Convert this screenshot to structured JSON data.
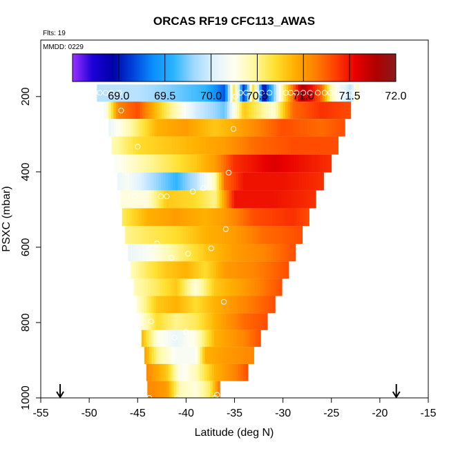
{
  "chart_data": {
    "type": "heatmap",
    "title": "ORCAS RF19 CFC113_AWAS",
    "annotations": {
      "flights": "Flts: 19",
      "date": "MMDD: 0229"
    },
    "xlabel": "Latitude (deg N)",
    "ylabel": "PSXC (mbar)",
    "xlim": [
      -55,
      -15
    ],
    "ylim": [
      1000,
      50
    ],
    "x_ticks": [
      -55,
      -50,
      -45,
      -40,
      -35,
      -30,
      -25,
      -20,
      -15
    ],
    "x_tick_labels": [
      "-55",
      "-50",
      "-45",
      "-40",
      "-35",
      "-30",
      "-25",
      "-20",
      "-15"
    ],
    "y_ticks": [
      200,
      400,
      600,
      800,
      1000
    ],
    "y_tick_labels": [
      "200",
      "400",
      "600",
      "800",
      "1000"
    ],
    "colorbar": {
      "range": [
        68.5,
        72.0
      ],
      "ticks": [
        69.0,
        69.5,
        70.0,
        70.5,
        71.0,
        71.5,
        72.0
      ],
      "tick_labels": [
        "69.0",
        "69.5",
        "70.0",
        "70.5",
        "71.0",
        "71.5",
        "72.0"
      ],
      "colors": [
        "#9b30ff",
        "#1c00d8",
        "#0000a8",
        "#0044dd",
        "#0a8fff",
        "#2ab4ff",
        "#9fd8ff",
        "#e0f2ff",
        "#fffff0",
        "#fff8a0",
        "#ffe030",
        "#ffb000",
        "#ff8000",
        "#ff4000",
        "#e80000",
        "#b00000",
        "#8b1a1a"
      ]
    },
    "region_markers": {
      "south_lat": -53,
      "north_lat": -18.3,
      "symbol": "↓"
    },
    "rows": [
      {
        "p": 190,
        "lat_min": -49.2,
        "lat_max": -22.2,
        "stops": [
          [
            -49,
            69.9
          ],
          [
            -45,
            69.9
          ],
          [
            -38,
            69.6
          ],
          [
            -36,
            69.2
          ],
          [
            -35,
            70.7
          ],
          [
            -34,
            69.0
          ],
          [
            -33,
            70.8
          ],
          [
            -32,
            68.9
          ],
          [
            -30,
            70.5
          ],
          [
            -28,
            71.8
          ],
          [
            -26,
            71.2
          ],
          [
            -25,
            70.4
          ],
          [
            -23,
            69.9
          ],
          [
            -22,
            70.6
          ]
        ]
      },
      {
        "p": 237,
        "lat_min": -48.5,
        "lat_max": -23.0,
        "stops": [
          [
            -48.5,
            70.1
          ],
          [
            -47,
            71.1
          ],
          [
            -45,
            71.3
          ],
          [
            -42,
            70.6
          ],
          [
            -39,
            70.0
          ],
          [
            -36,
            69.7
          ],
          [
            -34,
            70.8
          ],
          [
            -31,
            70.3
          ],
          [
            -29,
            71.2
          ],
          [
            -26,
            71.4
          ],
          [
            -23,
            71.3
          ]
        ]
      },
      {
        "p": 282,
        "lat_min": -48.0,
        "lat_max": -23.6,
        "stops": [
          [
            -48,
            70.1
          ],
          [
            -46,
            70.4
          ],
          [
            -43,
            70.9
          ],
          [
            -40,
            71.0
          ],
          [
            -37,
            70.8
          ],
          [
            -34,
            71.0
          ],
          [
            -30,
            71.3
          ],
          [
            -26,
            71.2
          ],
          [
            -23.6,
            71.3
          ]
        ]
      },
      {
        "p": 330,
        "lat_min": -47.7,
        "lat_max": -24.3,
        "stops": [
          [
            -47.7,
            70.4
          ],
          [
            -45,
            70.7
          ],
          [
            -42,
            70.8
          ],
          [
            -39,
            70.9
          ],
          [
            -36,
            71.0
          ],
          [
            -33,
            71.2
          ],
          [
            -29,
            71.3
          ],
          [
            -24.3,
            71.3
          ]
        ]
      },
      {
        "p": 378,
        "lat_min": -47.4,
        "lat_max": -25.0,
        "stops": [
          [
            -47.4,
            70.2
          ],
          [
            -45,
            70.4
          ],
          [
            -42,
            70.6
          ],
          [
            -39,
            70.8
          ],
          [
            -37,
            71.0
          ],
          [
            -35,
            71.4
          ],
          [
            -31,
            71.6
          ],
          [
            -25,
            71.4
          ]
        ]
      },
      {
        "p": 425,
        "lat_min": -47.1,
        "lat_max": -25.8,
        "stops": [
          [
            -47.1,
            70.1
          ],
          [
            -46,
            70.2
          ],
          [
            -43,
            69.8
          ],
          [
            -41,
            69.6
          ],
          [
            -39,
            69.9
          ],
          [
            -37,
            70.4
          ],
          [
            -36,
            71.2
          ],
          [
            -34,
            71.5
          ],
          [
            -30,
            71.5
          ],
          [
            -25.8,
            71.4
          ]
        ]
      },
      {
        "p": 473,
        "lat_min": -46.8,
        "lat_max": -26.6,
        "stops": [
          [
            -46.8,
            70.3
          ],
          [
            -44,
            70.3
          ],
          [
            -42,
            70.8
          ],
          [
            -39,
            70.7
          ],
          [
            -37,
            70.5
          ],
          [
            -35,
            71.5
          ],
          [
            -31,
            71.5
          ],
          [
            -26.6,
            71.4
          ]
        ]
      },
      {
        "p": 520,
        "lat_min": -46.6,
        "lat_max": -27.3,
        "stops": [
          [
            -46.6,
            70.6
          ],
          [
            -44,
            70.9
          ],
          [
            -41,
            71.0
          ],
          [
            -38,
            70.9
          ],
          [
            -36,
            71.0
          ],
          [
            -33,
            71.3
          ],
          [
            -29,
            71.4
          ],
          [
            -27.3,
            71.3
          ]
        ]
      },
      {
        "p": 567,
        "lat_min": -46.3,
        "lat_max": -28.0,
        "stops": [
          [
            -46.3,
            70.5
          ],
          [
            -44,
            70.6
          ],
          [
            -41,
            70.7
          ],
          [
            -38,
            70.9
          ],
          [
            -35,
            71.0
          ],
          [
            -32,
            71.2
          ],
          [
            -28,
            71.3
          ]
        ]
      },
      {
        "p": 615,
        "lat_min": -46.0,
        "lat_max": -28.7,
        "stops": [
          [
            -46,
            70.1
          ],
          [
            -44,
            70.2
          ],
          [
            -41,
            70.5
          ],
          [
            -38,
            70.8
          ],
          [
            -35,
            71.0
          ],
          [
            -32,
            71.1
          ],
          [
            -28.7,
            71.3
          ]
        ]
      },
      {
        "p": 660,
        "lat_min": -45.7,
        "lat_max": -29.4,
        "stops": [
          [
            -45.7,
            70.4
          ],
          [
            -44,
            70.6
          ],
          [
            -42,
            70.8
          ],
          [
            -40,
            70.9
          ],
          [
            -38,
            70.7
          ],
          [
            -36,
            71.0
          ],
          [
            -33,
            71.1
          ],
          [
            -29.4,
            71.3
          ]
        ]
      },
      {
        "p": 707,
        "lat_min": -45.4,
        "lat_max": -30.1,
        "stops": [
          [
            -45.4,
            70.4
          ],
          [
            -43,
            70.6
          ],
          [
            -41,
            70.8
          ],
          [
            -39,
            70.3
          ],
          [
            -37,
            70.8
          ],
          [
            -34,
            71.0
          ],
          [
            -30.1,
            71.3
          ]
        ]
      },
      {
        "p": 752,
        "lat_min": -45.1,
        "lat_max": -30.8,
        "stops": [
          [
            -45.1,
            70.3
          ],
          [
            -43,
            70.8
          ],
          [
            -41,
            70.9
          ],
          [
            -39,
            70.7
          ],
          [
            -37,
            70.9
          ],
          [
            -34,
            71.1
          ],
          [
            -30.8,
            71.3
          ]
        ]
      },
      {
        "p": 798,
        "lat_min": -44.9,
        "lat_max": -31.6,
        "stops": [
          [
            -44.9,
            70.2
          ],
          [
            -43,
            70.7
          ],
          [
            -41,
            70.5
          ],
          [
            -39,
            70.6
          ],
          [
            -37,
            70.9
          ],
          [
            -34,
            71.2
          ],
          [
            -31.6,
            71.3
          ]
        ]
      },
      {
        "p": 842,
        "lat_min": -44.6,
        "lat_max": -32.3,
        "stops": [
          [
            -44.6,
            70.9
          ],
          [
            -43,
            70.3
          ],
          [
            -41,
            70.1
          ],
          [
            -39,
            70.3
          ],
          [
            -37,
            70.9
          ],
          [
            -34,
            71.1
          ],
          [
            -32.3,
            71.3
          ]
        ]
      },
      {
        "p": 887,
        "lat_min": -44.3,
        "lat_max": -33.0,
        "stops": [
          [
            -44.3,
            71.0
          ],
          [
            -43,
            70.5
          ],
          [
            -41,
            70.2
          ],
          [
            -39,
            70.2
          ],
          [
            -38,
            70.9
          ],
          [
            -36,
            71.0
          ],
          [
            -33,
            71.1
          ]
        ]
      },
      {
        "p": 933,
        "lat_min": -44.1,
        "lat_max": -33.6,
        "stops": [
          [
            -44.1,
            71.1
          ],
          [
            -42,
            70.8
          ],
          [
            -40.5,
            70.2
          ],
          [
            -39,
            70.4
          ],
          [
            -37,
            70.9
          ],
          [
            -35,
            71.1
          ],
          [
            -33.6,
            71.3
          ]
        ]
      },
      {
        "p": 978,
        "lat_min": -44.0,
        "lat_max": -36.5,
        "stops": [
          [
            -44,
            71.1
          ],
          [
            -42,
            71.0
          ],
          [
            -40.6,
            70.4
          ],
          [
            -39,
            70.3
          ],
          [
            -37.5,
            70.6
          ],
          [
            -36.5,
            71.2
          ]
        ]
      }
    ],
    "points": [
      {
        "lat": -48.9,
        "p": 190
      },
      {
        "lat": -48.3,
        "p": 190
      },
      {
        "lat": -47.7,
        "p": 190
      },
      {
        "lat": -46.9,
        "p": 190
      },
      {
        "lat": -34.9,
        "p": 200
      },
      {
        "lat": -34.4,
        "p": 190
      },
      {
        "lat": -33.8,
        "p": 190
      },
      {
        "lat": -32.8,
        "p": 190
      },
      {
        "lat": -32.2,
        "p": 190
      },
      {
        "lat": -31.4,
        "p": 190
      },
      {
        "lat": -29.7,
        "p": 190
      },
      {
        "lat": -29.2,
        "p": 190
      },
      {
        "lat": -28.6,
        "p": 190
      },
      {
        "lat": -27.9,
        "p": 190
      },
      {
        "lat": -27.2,
        "p": 190
      },
      {
        "lat": -26.4,
        "p": 190
      },
      {
        "lat": -25.7,
        "p": 190
      },
      {
        "lat": -25.1,
        "p": 190
      },
      {
        "lat": -24.4,
        "p": 190
      },
      {
        "lat": -23.7,
        "p": 190
      },
      {
        "lat": -23.0,
        "p": 190
      },
      {
        "lat": -22.4,
        "p": 190
      },
      {
        "lat": -46.7,
        "p": 237
      },
      {
        "lat": -35.1,
        "p": 286
      },
      {
        "lat": -45.0,
        "p": 333
      },
      {
        "lat": -35.6,
        "p": 402
      },
      {
        "lat": -38.2,
        "p": 443
      },
      {
        "lat": -39.3,
        "p": 452
      },
      {
        "lat": -45.3,
        "p": 465
      },
      {
        "lat": -42.6,
        "p": 465
      },
      {
        "lat": -42.0,
        "p": 465
      },
      {
        "lat": -35.9,
        "p": 552
      },
      {
        "lat": -43.0,
        "p": 590
      },
      {
        "lat": -37.4,
        "p": 603
      },
      {
        "lat": -39.8,
        "p": 617
      },
      {
        "lat": -41.5,
        "p": 628
      },
      {
        "lat": -36.1,
        "p": 745
      },
      {
        "lat": -43.6,
        "p": 797
      },
      {
        "lat": -40.0,
        "p": 825
      },
      {
        "lat": -41.2,
        "p": 840
      },
      {
        "lat": -44.2,
        "p": 1000
      },
      {
        "lat": -43.8,
        "p": 1000
      },
      {
        "lat": -40.9,
        "p": 1000
      },
      {
        "lat": -37.0,
        "p": 1000
      },
      {
        "lat": -36.8,
        "p": 992
      }
    ]
  }
}
